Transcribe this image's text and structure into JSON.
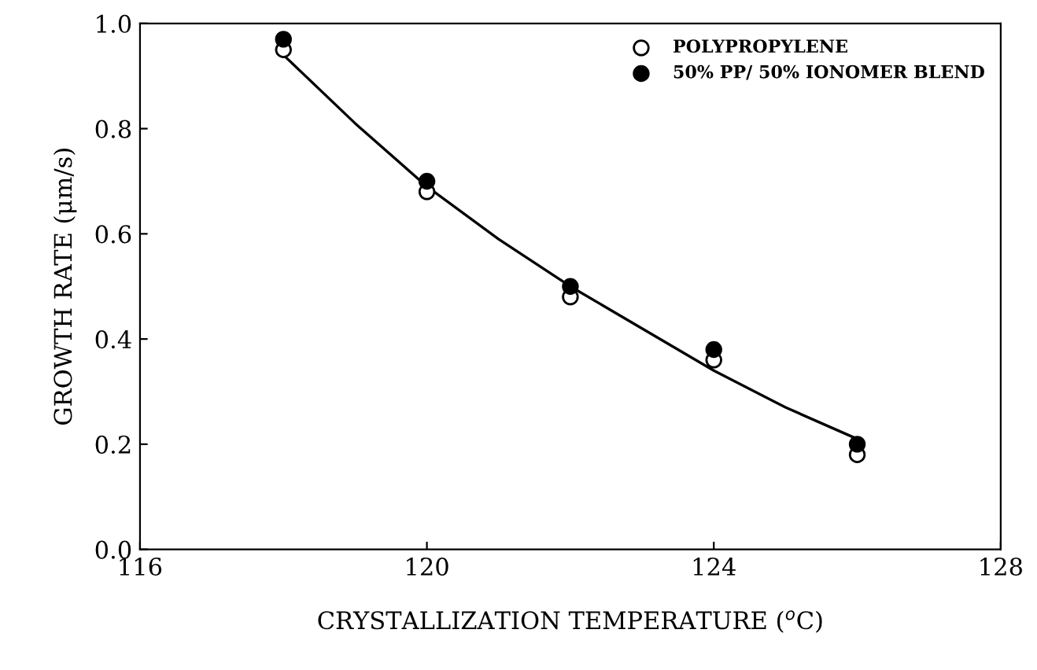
{
  "chart_data": {
    "type": "scatter",
    "xlabel": "CRYSTALLIZATION TEMPERATURE ($^{o}$C)",
    "ylabel": "GROWTH RATE (μm/s)",
    "xlim": [
      116,
      128
    ],
    "xticks": [
      116,
      120,
      124,
      128
    ],
    "ylim": [
      0,
      1.0
    ],
    "yticks": [
      {
        "value": 0,
        "label": "0.0"
      },
      0.2,
      0.4,
      0.6,
      0.8,
      {
        "value": 1.0,
        "label": "1.0"
      }
    ],
    "grid": false,
    "legend": "top right",
    "marker": "circle",
    "series": [
      {
        "name": "POLYPROPYLENE",
        "color": "#ffffff",
        "x": [
          118,
          120,
          122,
          124,
          126
        ],
        "values": [
          0.95,
          0.68,
          0.48,
          0.36,
          0.18
        ]
      },
      {
        "name": "50% PP/ 50% IONOMER BLEND",
        "color": "#000000",
        "x": [
          118,
          120,
          122,
          124,
          126
        ],
        "values": [
          0.97,
          0.7,
          0.5,
          0.38,
          0.2
        ]
      },
      {
        "type": "line",
        "color": "#000000",
        "marker": "none",
        "line_style": "solid",
        "x": [
          118,
          119,
          120,
          121,
          122,
          123,
          124,
          125,
          126
        ],
        "values": [
          0.94,
          0.81,
          0.69,
          0.59,
          0.5,
          0.42,
          0.34,
          0.27,
          0.21
        ]
      }
    ]
  }
}
